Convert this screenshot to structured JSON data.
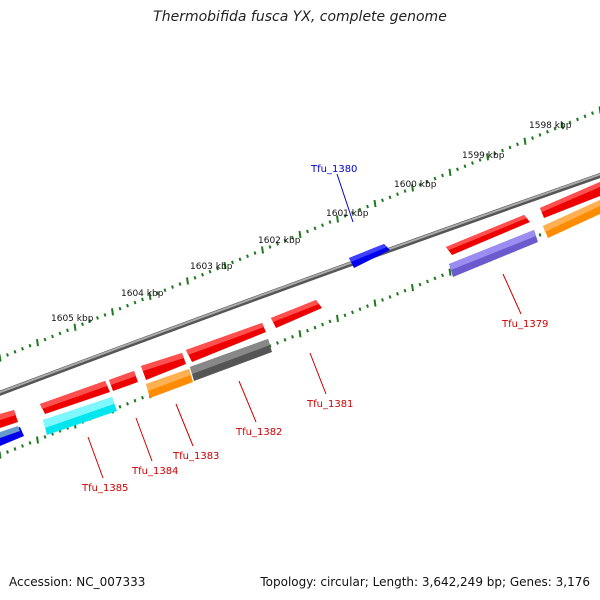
{
  "title": "Thermobifida fusca YX, complete genome",
  "footer": {
    "accession": "Accession: NC_007333",
    "summary": "Topology: circular; Length: 3,642,249 bp; Genes: 3,176"
  },
  "colors": {
    "backbone": "#8a8a8a",
    "tick": "#1e7a1e",
    "label_red": "#cc0000",
    "label_blue": "#0000cc"
  },
  "scale": {
    "labels": [
      "1598 kbp",
      "1599 kbp",
      "1600 kbp",
      "1601 kbp",
      "1602 kbp",
      "1603 kbp",
      "1604 kbp",
      "1605 kbp"
    ]
  },
  "gene_labels": [
    {
      "name": "Tfu_1380",
      "color": "#0000cc"
    },
    {
      "name": "Tfu_1379",
      "color": "#cc0000"
    },
    {
      "name": "Tfu_1381",
      "color": "#cc0000"
    },
    {
      "name": "Tfu_1382",
      "color": "#cc0000"
    },
    {
      "name": "Tfu_1383",
      "color": "#cc0000"
    },
    {
      "name": "Tfu_1384",
      "color": "#cc0000"
    },
    {
      "name": "Tfu_1385",
      "color": "#cc0000"
    }
  ]
}
